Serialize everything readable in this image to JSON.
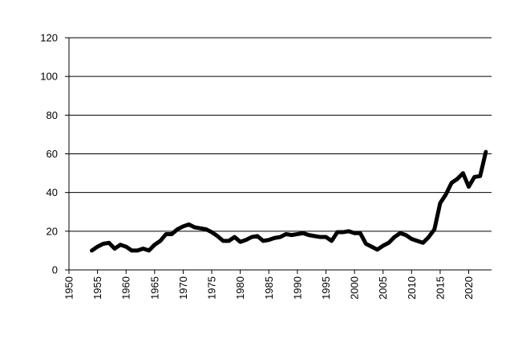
{
  "chart_data": {
    "type": "line",
    "title": "",
    "xlabel": "",
    "ylabel": "",
    "xlim": [
      1950,
      2024
    ],
    "ylim": [
      0,
      120
    ],
    "y_ticks": [
      0,
      20,
      40,
      60,
      80,
      100,
      120
    ],
    "x_ticks": [
      1950,
      1955,
      1960,
      1965,
      1970,
      1975,
      1980,
      1985,
      1990,
      1995,
      2000,
      2005,
      2010,
      2015,
      2020
    ],
    "y_grid": true,
    "x_grid": false,
    "legend": "none",
    "colors": {
      "line": "#000000",
      "grid": "#000000"
    },
    "series": [
      {
        "x": [
          1954,
          1955,
          1956,
          1957,
          1958,
          1959,
          1960,
          1961,
          1962,
          1963,
          1964,
          1965,
          1966,
          1967,
          1968,
          1969,
          1970,
          1971,
          1972,
          1973,
          1974,
          1975,
          1976,
          1977,
          1978,
          1979,
          1980,
          1981,
          1982,
          1983,
          1984,
          1985,
          1986,
          1987,
          1988,
          1989,
          1990,
          1991,
          1992,
          1993,
          1994,
          1995,
          1996,
          1997,
          1998,
          1999,
          2000,
          2001,
          2002,
          2003,
          2004,
          2005,
          2006,
          2007,
          2008,
          2009,
          2010,
          2011,
          2012,
          2013,
          2014,
          2015,
          2016,
          2017,
          2018,
          2019,
          2020,
          2021,
          2022,
          2023
        ],
        "y": [
          10,
          12,
          13.5,
          14,
          11,
          13,
          12,
          10,
          10,
          11,
          10,
          13,
          15,
          18.5,
          18.5,
          21,
          22.5,
          23.5,
          22,
          21.5,
          21,
          19.5,
          17.5,
          15,
          15,
          17,
          14.5,
          15.5,
          17,
          17.5,
          15,
          15.5,
          16.5,
          17,
          18.5,
          18,
          18.5,
          19,
          18,
          17.5,
          17,
          17,
          15,
          19.5,
          19.5,
          20,
          19,
          19,
          13.5,
          12,
          10.5,
          12.5,
          14,
          17,
          19,
          18,
          16,
          15,
          14,
          17,
          21,
          34.5,
          39,
          45,
          47,
          50,
          43,
          48,
          48.5,
          61
        ]
      }
    ]
  }
}
